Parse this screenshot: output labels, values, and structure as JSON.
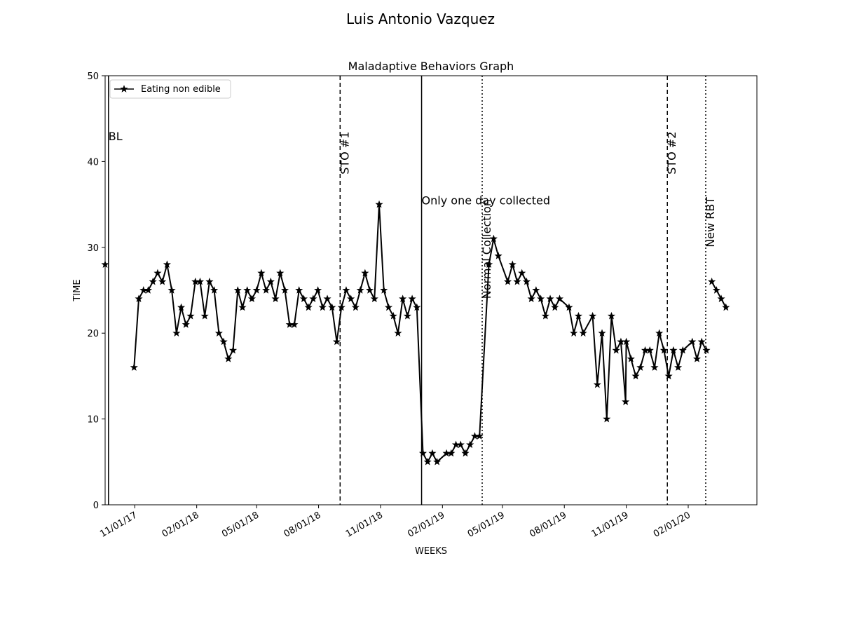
{
  "chart_data": {
    "type": "line",
    "suptitle": "Luis Antonio  Vazquez",
    "title": "Maladaptive Behaviors Graph",
    "xlabel": "WEEKS",
    "ylabel": "TIME",
    "ylim": [
      0,
      50
    ],
    "yticks": [
      0,
      10,
      20,
      30,
      40,
      50
    ],
    "xlim": [
      "2017-09-18",
      "2020-05-13"
    ],
    "xticks": [
      {
        "date": "2017-11-01",
        "label": "11/01/17"
      },
      {
        "date": "2018-02-01",
        "label": "02/01/18"
      },
      {
        "date": "2018-05-01",
        "label": "05/01/18"
      },
      {
        "date": "2018-08-01",
        "label": "08/01/18"
      },
      {
        "date": "2018-11-01",
        "label": "11/01/18"
      },
      {
        "date": "2019-02-01",
        "label": "02/01/19"
      },
      {
        "date": "2019-05-01",
        "label": "05/01/19"
      },
      {
        "date": "2019-08-01",
        "label": "08/01/19"
      },
      {
        "date": "2019-11-01",
        "label": "11/01/19"
      },
      {
        "date": "2020-02-01",
        "label": "02/01/20"
      }
    ],
    "legend": {
      "position": "upper-left",
      "entries": [
        "Eating non edible"
      ]
    },
    "grid": false,
    "series": [
      {
        "name": "Eating non edible",
        "color": "#000000",
        "marker": "star",
        "segments": [
          [
            [
              "2017-09-18",
              28
            ]
          ],
          [
            [
              "2017-10-31",
              16
            ],
            [
              "2017-11-07",
              24
            ],
            [
              "2017-11-14",
              25
            ],
            [
              "2017-11-21",
              25
            ],
            [
              "2017-11-28",
              26
            ],
            [
              "2017-12-05",
              27
            ],
            [
              "2017-12-12",
              26
            ],
            [
              "2017-12-19",
              28
            ],
            [
              "2017-12-26",
              25
            ],
            [
              "2018-01-02",
              20
            ],
            [
              "2018-01-09",
              23
            ],
            [
              "2018-01-16",
              21
            ],
            [
              "2018-01-23",
              22
            ],
            [
              "2018-01-30",
              26
            ],
            [
              "2018-02-06",
              26
            ],
            [
              "2018-02-13",
              22
            ],
            [
              "2018-02-20",
              26
            ],
            [
              "2018-02-27",
              25
            ],
            [
              "2018-03-06",
              20
            ],
            [
              "2018-03-13",
              19
            ],
            [
              "2018-03-20",
              17
            ],
            [
              "2018-03-27",
              18
            ],
            [
              "2018-04-03",
              25
            ],
            [
              "2018-04-10",
              23
            ],
            [
              "2018-04-17",
              25
            ],
            [
              "2018-04-24",
              24
            ],
            [
              "2018-05-01",
              25
            ],
            [
              "2018-05-08",
              27
            ],
            [
              "2018-05-15",
              25
            ],
            [
              "2018-05-22",
              26
            ],
            [
              "2018-05-29",
              24
            ],
            [
              "2018-06-05",
              27
            ],
            [
              "2018-06-12",
              25
            ],
            [
              "2018-06-19",
              21
            ],
            [
              "2018-06-26",
              21
            ],
            [
              "2018-07-03",
              25
            ],
            [
              "2018-07-10",
              24
            ],
            [
              "2018-07-17",
              23
            ],
            [
              "2018-07-24",
              24
            ],
            [
              "2018-07-31",
              25
            ],
            [
              "2018-08-07",
              23
            ],
            [
              "2018-08-14",
              24
            ],
            [
              "2018-08-21",
              23
            ],
            [
              "2018-08-28",
              19
            ],
            [
              "2018-09-04",
              23
            ],
            [
              "2018-09-11",
              25
            ],
            [
              "2018-09-18",
              24
            ],
            [
              "2018-09-25",
              23
            ],
            [
              "2018-10-02",
              25
            ],
            [
              "2018-10-09",
              27
            ],
            [
              "2018-10-16",
              25
            ],
            [
              "2018-10-23",
              24
            ],
            [
              "2018-10-30",
              35
            ],
            [
              "2018-11-06",
              25
            ],
            [
              "2018-11-13",
              23
            ],
            [
              "2018-11-20",
              22
            ],
            [
              "2018-11-27",
              20
            ],
            [
              "2018-12-04",
              24
            ],
            [
              "2018-12-11",
              22
            ],
            [
              "2018-12-18",
              24
            ],
            [
              "2018-12-25",
              23
            ],
            [
              "2019-01-03",
              6
            ],
            [
              "2019-01-10",
              5
            ],
            [
              "2019-01-17",
              6
            ],
            [
              "2019-01-24",
              5
            ],
            [
              "2019-02-07",
              6
            ],
            [
              "2019-02-14",
              6
            ],
            [
              "2019-02-21",
              7
            ],
            [
              "2019-02-28",
              7
            ],
            [
              "2019-03-07",
              6
            ],
            [
              "2019-03-14",
              7
            ],
            [
              "2019-03-21",
              8
            ],
            [
              "2019-03-28",
              8
            ],
            [
              "2019-04-11",
              28
            ],
            [
              "2019-04-18",
              31
            ],
            [
              "2019-04-25",
              29
            ],
            [
              "2019-05-09",
              26
            ],
            [
              "2019-05-16",
              28
            ],
            [
              "2019-05-23",
              26
            ],
            [
              "2019-05-30",
              27
            ],
            [
              "2019-06-06",
              26
            ],
            [
              "2019-06-13",
              24
            ],
            [
              "2019-06-20",
              25
            ],
            [
              "2019-06-27",
              24
            ],
            [
              "2019-07-04",
              22
            ],
            [
              "2019-07-11",
              24
            ],
            [
              "2019-07-18",
              23
            ],
            [
              "2019-07-25",
              24
            ],
            [
              "2019-08-08",
              23
            ],
            [
              "2019-08-15",
              20
            ],
            [
              "2019-08-22",
              22
            ],
            [
              "2019-08-29",
              20
            ],
            [
              "2019-09-12",
              22
            ],
            [
              "2019-09-19",
              14
            ],
            [
              "2019-09-26",
              20
            ],
            [
              "2019-10-03",
              10
            ],
            [
              "2019-10-10",
              22
            ],
            [
              "2019-10-17",
              18
            ],
            [
              "2019-10-24",
              19
            ],
            [
              "2019-10-31",
              12
            ],
            [
              "2019-11-01",
              19
            ],
            [
              "2019-11-08",
              17
            ],
            [
              "2019-11-15",
              15
            ],
            [
              "2019-11-22",
              16
            ],
            [
              "2019-11-29",
              18
            ],
            [
              "2019-12-06",
              18
            ],
            [
              "2019-12-13",
              16
            ],
            [
              "2019-12-20",
              20
            ],
            [
              "2019-12-27",
              18
            ],
            [
              "2020-01-03",
              15
            ],
            [
              "2020-01-10",
              18
            ],
            [
              "2020-01-17",
              16
            ],
            [
              "2020-01-24",
              18
            ],
            [
              "2020-02-07",
              19
            ],
            [
              "2020-02-14",
              17
            ],
            [
              "2020-02-21",
              19
            ],
            [
              "2020-02-28",
              18
            ]
          ],
          [
            [
              "2020-03-07",
              26
            ],
            [
              "2020-03-14",
              25
            ],
            [
              "2020-03-21",
              24
            ],
            [
              "2020-03-28",
              23
            ]
          ]
        ]
      }
    ],
    "phase_lines": [
      {
        "date": "2017-09-23",
        "style": "solid",
        "label": "BL",
        "label_orientation": "horizontal",
        "label_y": 42.5
      },
      {
        "date": "2018-09-02",
        "style": "dashed",
        "label": "STO #1",
        "label_orientation": "vertical",
        "label_y": 38.5
      },
      {
        "date": "2019-01-01",
        "style": "solid",
        "label": "Only one day collected",
        "label_orientation": "horizontal",
        "label_y": 35
      },
      {
        "date": "2019-04-01",
        "style": "dotted",
        "label": "Normal Collection",
        "label_orientation": "vertical",
        "label_y": 24
      },
      {
        "date": "2020-01-01",
        "style": "dashed",
        "label": "STO #2",
        "label_orientation": "vertical",
        "label_y": 38.5
      },
      {
        "date": "2020-02-27",
        "style": "dotted",
        "label": "New RBT",
        "label_orientation": "vertical",
        "label_y": 30
      }
    ]
  }
}
